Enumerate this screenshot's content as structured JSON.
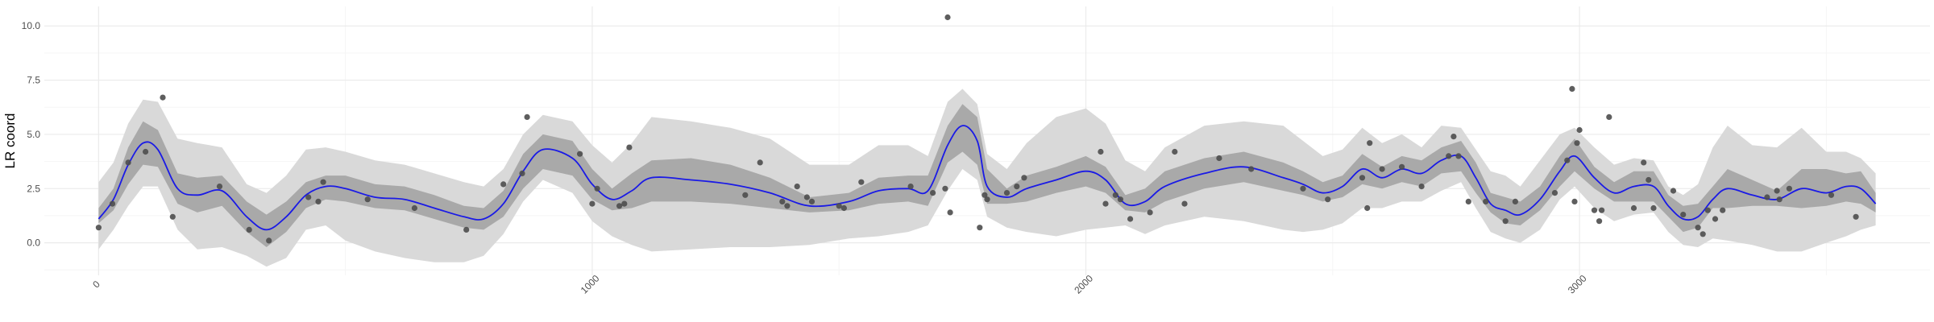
{
  "chart_data": {
    "type": "scatter",
    "title": "",
    "xlabel": "",
    "ylabel": "LR coord",
    "xlim": [
      -110,
      3710
    ],
    "ylim": [
      -1.5,
      10.9
    ],
    "x_ticks": [
      0,
      1000,
      2000,
      3000
    ],
    "x_tick_labels": [
      "0",
      "1000",
      "2000",
      "3000"
    ],
    "y_ticks": [
      0,
      2.5,
      5,
      7.5,
      10
    ],
    "y_tick_labels": [
      "0.0",
      "2.5",
      "5.0",
      "7.5",
      "10.0"
    ],
    "grid": true,
    "legend": "none",
    "colors": {
      "points": "#4d4d4d",
      "line": "#1a1ae6",
      "inner_band": "#a9a9a9",
      "outer_band": "#d9d9d9",
      "grid_major": "#ebebeb",
      "grid_minor": "#f5f5f5"
    },
    "points": [
      [
        0,
        0.7
      ],
      [
        28,
        1.8
      ],
      [
        60,
        3.7
      ],
      [
        95,
        4.2
      ],
      [
        130,
        6.7
      ],
      [
        150,
        1.2
      ],
      [
        245,
        2.6
      ],
      [
        305,
        0.6
      ],
      [
        345,
        0.1
      ],
      [
        425,
        2.1
      ],
      [
        445,
        1.9
      ],
      [
        455,
        2.8
      ],
      [
        545,
        2.0
      ],
      [
        640,
        1.6
      ],
      [
        745,
        0.6
      ],
      [
        820,
        2.7
      ],
      [
        858,
        3.2
      ],
      [
        868,
        5.8
      ],
      [
        975,
        4.1
      ],
      [
        1000,
        1.8
      ],
      [
        1010,
        2.5
      ],
      [
        1055,
        1.7
      ],
      [
        1065,
        1.8
      ],
      [
        1075,
        4.4
      ],
      [
        1310,
        2.2
      ],
      [
        1340,
        3.7
      ],
      [
        1385,
        1.9
      ],
      [
        1395,
        1.7
      ],
      [
        1415,
        2.6
      ],
      [
        1435,
        2.1
      ],
      [
        1445,
        1.9
      ],
      [
        1500,
        1.7
      ],
      [
        1510,
        1.6
      ],
      [
        1545,
        2.8
      ],
      [
        1645,
        2.6
      ],
      [
        1690,
        2.3
      ],
      [
        1725,
        1.4
      ],
      [
        1715,
        2.5
      ],
      [
        1720,
        10.4
      ],
      [
        1785,
        0.7
      ],
      [
        1795,
        2.2
      ],
      [
        1800,
        2.0
      ],
      [
        1840,
        2.3
      ],
      [
        1860,
        2.6
      ],
      [
        1875,
        3.0
      ],
      [
        2030,
        4.2
      ],
      [
        2040,
        1.8
      ],
      [
        2060,
        2.2
      ],
      [
        2070,
        2.0
      ],
      [
        2090,
        1.1
      ],
      [
        2130,
        1.4
      ],
      [
        2180,
        4.2
      ],
      [
        2200,
        1.8
      ],
      [
        2270,
        3.9
      ],
      [
        2335,
        3.4
      ],
      [
        2440,
        2.5
      ],
      [
        2490,
        2.0
      ],
      [
        2560,
        3.0
      ],
      [
        2570,
        1.6
      ],
      [
        2575,
        4.6
      ],
      [
        2600,
        3.4
      ],
      [
        2640,
        3.5
      ],
      [
        2680,
        2.6
      ],
      [
        2735,
        4.0
      ],
      [
        2745,
        4.9
      ],
      [
        2755,
        4.0
      ],
      [
        2775,
        1.9
      ],
      [
        2810,
        1.9
      ],
      [
        2850,
        1.0
      ],
      [
        2870,
        1.9
      ],
      [
        2950,
        2.3
      ],
      [
        2975,
        3.8
      ],
      [
        2985,
        7.1
      ],
      [
        2990,
        1.9
      ],
      [
        3000,
        5.2
      ],
      [
        2995,
        4.6
      ],
      [
        3030,
        1.5
      ],
      [
        3040,
        1.0
      ],
      [
        3045,
        1.5
      ],
      [
        3060,
        5.8
      ],
      [
        3110,
        1.6
      ],
      [
        3130,
        3.7
      ],
      [
        3140,
        2.9
      ],
      [
        3150,
        1.6
      ],
      [
        3190,
        2.4
      ],
      [
        3210,
        1.3
      ],
      [
        3240,
        0.7
      ],
      [
        3250,
        0.4
      ],
      [
        3260,
        1.5
      ],
      [
        3275,
        1.1
      ],
      [
        3290,
        1.5
      ],
      [
        3380,
        2.1
      ],
      [
        3400,
        2.4
      ],
      [
        3405,
        2.0
      ],
      [
        3425,
        2.5
      ],
      [
        3510,
        2.2
      ],
      [
        3560,
        1.2
      ]
    ],
    "fit_line": {
      "x": [
        0,
        30,
        60,
        90,
        120,
        160,
        200,
        250,
        300,
        340,
        380,
        420,
        460,
        500,
        560,
        620,
        680,
        740,
        780,
        820,
        860,
        900,
        960,
        1000,
        1040,
        1080,
        1120,
        1200,
        1280,
        1360,
        1440,
        1520,
        1580,
        1640,
        1680,
        1720,
        1750,
        1780,
        1800,
        1840,
        1880,
        1940,
        2000,
        2040,
        2080,
        2120,
        2160,
        2240,
        2320,
        2400,
        2440,
        2480,
        2520,
        2560,
        2600,
        2640,
        2680,
        2720,
        2760,
        2790,
        2820,
        2850,
        2880,
        2920,
        2960,
        2990,
        3030,
        3070,
        3110,
        3150,
        3180,
        3210,
        3240,
        3270,
        3300,
        3350,
        3400,
        3450,
        3500,
        3540,
        3570,
        3600
      ],
      "y": [
        1.1,
        2.0,
        3.6,
        4.6,
        4.3,
        2.5,
        2.2,
        2.4,
        1.2,
        0.6,
        1.2,
        2.2,
        2.6,
        2.5,
        2.1,
        2.0,
        1.6,
        1.2,
        1.1,
        1.8,
        3.3,
        4.3,
        3.9,
        2.7,
        2.0,
        2.4,
        3.0,
        2.9,
        2.7,
        2.3,
        1.7,
        1.9,
        2.4,
        2.5,
        2.4,
        4.5,
        5.4,
        4.7,
        2.6,
        2.1,
        2.5,
        2.9,
        3.3,
        2.9,
        1.8,
        1.9,
        2.6,
        3.2,
        3.5,
        3.0,
        2.7,
        2.3,
        2.6,
        3.4,
        3.0,
        3.4,
        3.2,
        3.8,
        4.0,
        3.0,
        1.8,
        1.5,
        1.3,
        2.0,
        3.3,
        4.0,
        3.0,
        2.3,
        2.6,
        2.6,
        1.7,
        1.1,
        1.2,
        2.0,
        2.5,
        2.2,
        2.0,
        2.5,
        2.3,
        2.6,
        2.5,
        1.8
      ]
    },
    "inner_band": {
      "lower": [
        0.9,
        1.5,
        2.7,
        3.6,
        3.5,
        1.8,
        1.4,
        1.7,
        0.5,
        -0.2,
        0.5,
        1.6,
        2.0,
        1.9,
        1.6,
        1.5,
        1.1,
        0.7,
        0.6,
        1.2,
        2.5,
        3.4,
        3.1,
        2.0,
        1.5,
        1.6,
        1.9,
        1.9,
        1.8,
        1.6,
        1.4,
        1.5,
        1.8,
        1.9,
        1.7,
        3.7,
        4.2,
        3.6,
        1.8,
        1.8,
        1.9,
        2.3,
        2.6,
        2.3,
        1.5,
        1.4,
        1.9,
        2.5,
        2.8,
        2.4,
        2.2,
        1.9,
        2.1,
        2.7,
        2.5,
        2.8,
        2.6,
        3.2,
        3.3,
        2.3,
        1.4,
        0.9,
        0.8,
        1.5,
        2.6,
        3.3,
        2.5,
        1.9,
        1.9,
        1.9,
        1.2,
        0.5,
        0.7,
        1.6,
        1.6,
        1.7,
        1.7,
        1.6,
        1.7,
        1.9,
        1.8,
        1.4
      ],
      "upper": [
        1.6,
        2.5,
        4.4,
        5.6,
        5.2,
        3.2,
        3.0,
        3.1,
        1.9,
        1.3,
        1.9,
        2.8,
        3.1,
        3.1,
        2.7,
        2.6,
        2.2,
        1.7,
        1.6,
        2.4,
        4.1,
        5.0,
        4.7,
        3.4,
        2.5,
        3.2,
        3.8,
        3.9,
        3.6,
        3.0,
        2.1,
        2.3,
        3.0,
        3.1,
        3.1,
        5.4,
        6.4,
        5.8,
        3.4,
        2.5,
        3.1,
        3.5,
        4.0,
        3.5,
        2.2,
        2.5,
        3.3,
        3.9,
        4.2,
        3.7,
        3.3,
        2.8,
        3.1,
        4.1,
        3.5,
        4.0,
        3.8,
        4.4,
        4.7,
        3.7,
        2.3,
        2.1,
        1.9,
        2.6,
        4.0,
        4.8,
        3.5,
        2.8,
        3.3,
        3.3,
        2.2,
        1.7,
        1.8,
        2.6,
        3.4,
        2.9,
        2.4,
        3.4,
        3.4,
        3.2,
        3.3,
        2.3
      ]
    },
    "outer_band": {
      "lower": [
        -0.3,
        0.6,
        1.7,
        2.6,
        2.6,
        0.6,
        -0.3,
        -0.2,
        -0.6,
        -1.1,
        -0.7,
        0.6,
        0.8,
        0.1,
        -0.4,
        -0.7,
        -0.9,
        -0.9,
        -0.6,
        0.4,
        1.9,
        2.9,
        2.3,
        1.0,
        0.3,
        -0.1,
        -0.4,
        -0.3,
        -0.2,
        -0.2,
        -0.1,
        0.2,
        0.3,
        0.5,
        0.8,
        2.4,
        3.4,
        2.9,
        1.2,
        0.7,
        0.5,
        0.3,
        0.6,
        0.7,
        0.8,
        0.4,
        0.8,
        1.2,
        1.0,
        0.6,
        0.5,
        0.6,
        0.9,
        1.6,
        1.6,
        1.9,
        1.9,
        2.4,
        2.8,
        1.6,
        0.5,
        0.2,
        0.0,
        0.6,
        2.0,
        2.6,
        1.6,
        1.0,
        1.3,
        1.4,
        0.5,
        -0.1,
        -0.2,
        0.2,
        0.1,
        -0.1,
        -0.4,
        -0.4,
        0.0,
        0.3,
        0.6,
        0.8
      ],
      "upper": [
        2.8,
        3.7,
        5.5,
        6.6,
        6.5,
        4.8,
        4.6,
        4.4,
        2.7,
        2.3,
        3.1,
        4.3,
        4.4,
        4.2,
        3.8,
        3.6,
        3.2,
        2.8,
        2.6,
        3.4,
        5.0,
        5.9,
        5.6,
        4.5,
        3.7,
        4.6,
        5.8,
        5.6,
        5.3,
        4.8,
        3.6,
        3.6,
        4.5,
        4.5,
        4.0,
        6.5,
        7.1,
        6.4,
        4.1,
        3.4,
        4.6,
        5.8,
        6.2,
        5.5,
        3.8,
        3.3,
        4.4,
        5.4,
        5.6,
        5.4,
        4.7,
        4.0,
        4.3,
        5.3,
        4.6,
        5.0,
        4.4,
        5.4,
        5.3,
        4.3,
        3.3,
        3.1,
        2.6,
        3.8,
        5.0,
        5.3,
        4.4,
        3.6,
        3.9,
        3.8,
        2.6,
        2.2,
        2.7,
        4.4,
        5.4,
        4.5,
        4.4,
        5.3,
        4.2,
        4.2,
        3.9,
        3.2
      ]
    }
  }
}
